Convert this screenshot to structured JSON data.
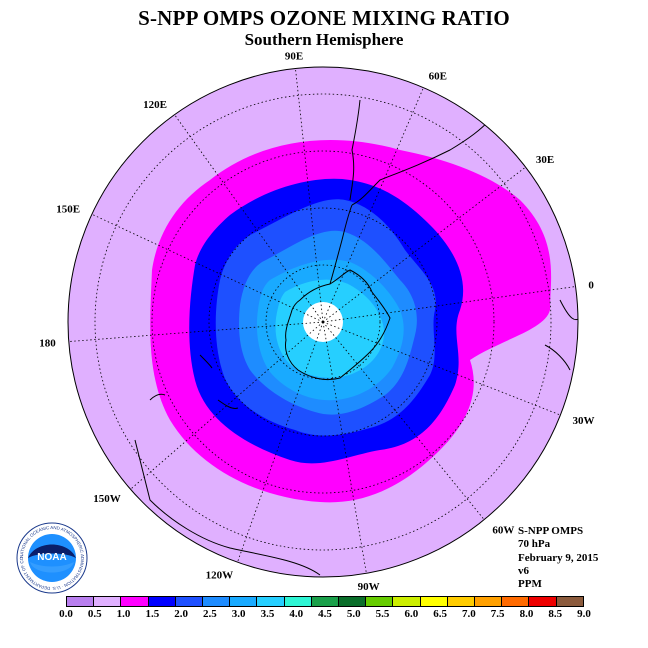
{
  "title": "S-NPP OMPS OZONE MIXING RATIO",
  "subtitle": "Southern Hemisphere",
  "longitude_labels": [
    {
      "text": "90W",
      "lon": -90
    },
    {
      "text": "60W",
      "lon": -60
    },
    {
      "text": "30W",
      "lon": -30
    },
    {
      "text": "0",
      "lon": 0
    },
    {
      "text": "30E",
      "lon": 30
    },
    {
      "text": "60E",
      "lon": 60
    },
    {
      "text": "90E",
      "lon": 90
    },
    {
      "text": "120E",
      "lon": 120
    },
    {
      "text": "150E",
      "lon": 150
    },
    {
      "text": "180",
      "lon": 180
    },
    {
      "text": "150W",
      "lon": -150
    },
    {
      "text": "120W",
      "lon": -120
    }
  ],
  "info": {
    "instrument": "S-NPP OMPS",
    "level": "70 hPa",
    "date": "February 9, 2015",
    "version": "v6",
    "units": "PPM"
  },
  "logo": {
    "text": "NOAA",
    "ring_text": "NATIONAL OCEANIC AND ATMOSPHERIC ADMINISTRATION · U.S. DEPARTMENT OF COMMERCE"
  },
  "colorbar": {
    "ticks": [
      "0.0",
      "0.5",
      "1.0",
      "1.5",
      "2.0",
      "2.5",
      "3.0",
      "3.5",
      "4.0",
      "4.5",
      "5.0",
      "5.5",
      "6.0",
      "6.5",
      "7.0",
      "7.5",
      "8.0",
      "8.5",
      "9.0"
    ],
    "colors": [
      "#b97fef",
      "#e0b0ff",
      "#ff00ff",
      "#0000ff",
      "#1e50ff",
      "#1e8cff",
      "#19aaff",
      "#26cfff",
      "#2ef5d4",
      "#1aa04a",
      "#0a6e2a",
      "#66cc00",
      "#ccee00",
      "#ffff00",
      "#ffcc00",
      "#ffa000",
      "#ff6a00",
      "#ee0000",
      "#8b5a3c"
    ]
  },
  "map_colors": {
    "ring_0_5_1_0": "#e0b0ff",
    "ring_1_0_1_5": "#ff00ff",
    "ring_1_5_2_0": "#0000ff",
    "ring_2_0_2_5": "#1e50ff",
    "ring_2_5_3_0": "#1e8cff",
    "ring_3_0_3_5": "#19aaff",
    "ring_3_5_4_0": "#26cfff",
    "no_data": "#ffffff"
  }
}
